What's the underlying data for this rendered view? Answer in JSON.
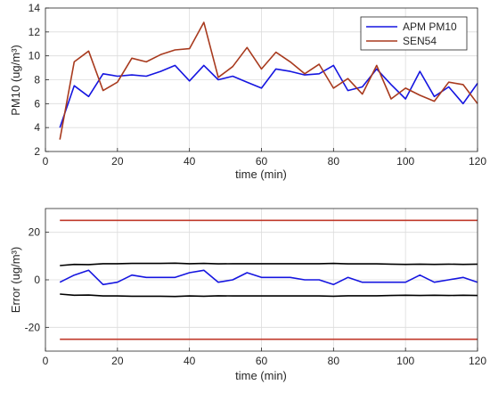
{
  "chart_data": [
    {
      "type": "line",
      "xlabel": "time (min)",
      "ylabel": "PM10 (ug/m³)",
      "xlim": [
        0,
        120
      ],
      "ylim": [
        2,
        14
      ],
      "xticks": [
        "0",
        "20",
        "40",
        "60",
        "80",
        "100",
        "120"
      ],
      "yticks": [
        "2",
        "4",
        "6",
        "8",
        "10",
        "12",
        "14"
      ],
      "grid": true,
      "legend_position": "top-right",
      "x": [
        4,
        8,
        12,
        16,
        20,
        24,
        28,
        32,
        36,
        40,
        44,
        48,
        52,
        56,
        60,
        64,
        68,
        72,
        76,
        80,
        84,
        88,
        92,
        96,
        100,
        104,
        108,
        112,
        116,
        120
      ],
      "series": [
        {
          "name": "APM PM10",
          "color": "#1515e0",
          "values": [
            4.0,
            7.5,
            6.6,
            8.5,
            8.3,
            8.4,
            8.3,
            8.7,
            9.2,
            7.9,
            9.2,
            8.0,
            8.3,
            7.8,
            7.3,
            8.9,
            8.7,
            8.4,
            8.5,
            9.2,
            7.1,
            7.4,
            8.9,
            7.6,
            6.4,
            8.7,
            6.6,
            7.4,
            6.0,
            7.7
          ]
        },
        {
          "name": "SEN54",
          "color": "#a83a1e",
          "values": [
            3.0,
            9.5,
            10.4,
            7.1,
            7.8,
            9.8,
            9.5,
            10.1,
            10.5,
            10.6,
            12.8,
            8.2,
            9.1,
            10.7,
            8.9,
            10.3,
            9.5,
            8.5,
            9.3,
            7.3,
            8.1,
            6.8,
            9.2,
            6.4,
            7.3,
            6.7,
            6.2,
            7.8,
            7.6,
            6.0
          ]
        }
      ]
    },
    {
      "type": "line",
      "xlabel": "time (min)",
      "ylabel": "Error (ug/m³)",
      "xlim": [
        0,
        120
      ],
      "ylim": [
        -30,
        30
      ],
      "xticks": [
        "0",
        "20",
        "40",
        "60",
        "80",
        "100",
        "120"
      ],
      "yticks": [
        "-20",
        "0",
        "20"
      ],
      "grid": true,
      "x": [
        4,
        8,
        12,
        16,
        20,
        24,
        28,
        32,
        36,
        40,
        44,
        48,
        52,
        56,
        60,
        64,
        68,
        72,
        76,
        80,
        84,
        88,
        92,
        96,
        100,
        104,
        108,
        112,
        116,
        120
      ],
      "series": [
        {
          "color": "#1515e0",
          "values": [
            -1.0,
            2.0,
            4.0,
            -2.0,
            -1.0,
            2.0,
            1.0,
            1.0,
            1.0,
            3.0,
            4.0,
            -1.0,
            0.0,
            3.0,
            1.0,
            1.0,
            1.0,
            0.0,
            0.0,
            -2.0,
            1.0,
            -1.0,
            -1.0,
            -1.0,
            -1.0,
            2.0,
            -1.0,
            0.0,
            1.0,
            -1.0
          ]
        },
        {
          "color": "#000000",
          "values": [
            6.0,
            6.5,
            6.4,
            6.8,
            6.8,
            6.9,
            6.9,
            6.9,
            7.0,
            6.8,
            6.9,
            6.7,
            6.8,
            6.8,
            6.8,
            6.8,
            6.8,
            6.8,
            6.8,
            6.9,
            6.7,
            6.7,
            6.7,
            6.6,
            6.5,
            6.6,
            6.5,
            6.6,
            6.5,
            6.6
          ]
        },
        {
          "color": "#000000",
          "values": [
            -6.0,
            -6.5,
            -6.4,
            -6.8,
            -6.8,
            -6.9,
            -6.9,
            -6.9,
            -7.0,
            -6.8,
            -6.9,
            -6.7,
            -6.8,
            -6.8,
            -6.8,
            -6.8,
            -6.8,
            -6.8,
            -6.8,
            -6.9,
            -6.7,
            -6.7,
            -6.7,
            -6.6,
            -6.5,
            -6.6,
            -6.5,
            -6.6,
            -6.5,
            -6.6
          ]
        },
        {
          "color": "#c0392b",
          "values": [
            25,
            25,
            25,
            25,
            25,
            25,
            25,
            25,
            25,
            25,
            25,
            25,
            25,
            25,
            25,
            25,
            25,
            25,
            25,
            25,
            25,
            25,
            25,
            25,
            25,
            25,
            25,
            25,
            25,
            25
          ]
        },
        {
          "color": "#c0392b",
          "values": [
            -25,
            -25,
            -25,
            -25,
            -25,
            -25,
            -25,
            -25,
            -25,
            -25,
            -25,
            -25,
            -25,
            -25,
            -25,
            -25,
            -25,
            -25,
            -25,
            -25,
            -25,
            -25,
            -25,
            -25,
            -25,
            -25,
            -25,
            -25,
            -25,
            -25
          ]
        }
      ]
    }
  ]
}
